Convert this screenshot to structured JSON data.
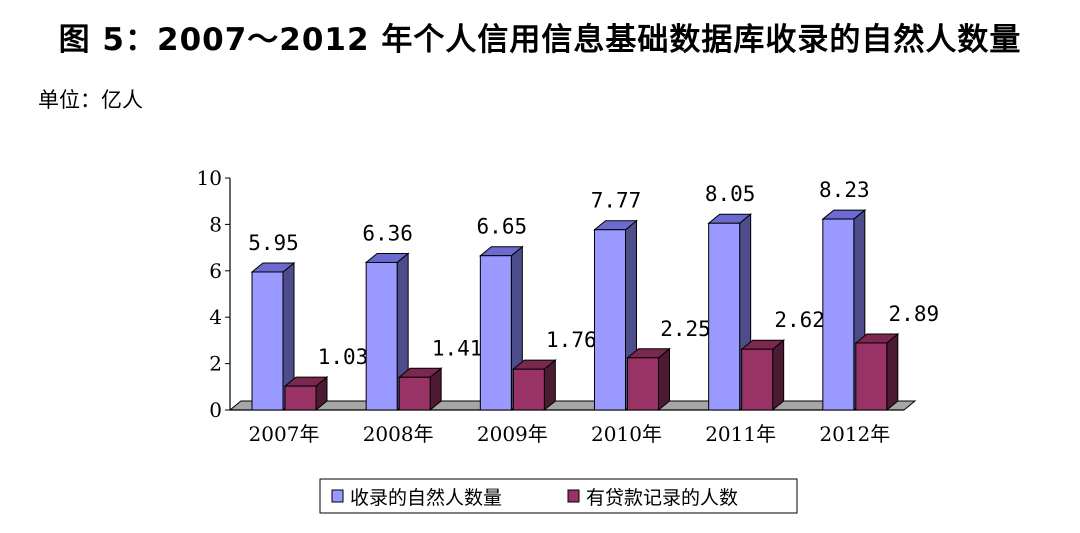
{
  "title": "图 5：2007～2012 年个人信用信息基础数据库收录的自然人数量",
  "unit": "单位：亿人",
  "colors": {
    "series1_front": "#9999ff",
    "series1_side": "#4d4d8c",
    "series1_top": "#6a6ad0",
    "series2_front": "#993366",
    "series2_side": "#4d1a33",
    "series2_top": "#7a2850",
    "floor": "#a6a6a6"
  },
  "chart_data": {
    "type": "bar",
    "categories": [
      "2007年",
      "2008年",
      "2009年",
      "2010年",
      "2011年",
      "2012年"
    ],
    "series": [
      {
        "name": "收录的自然人数量",
        "values": [
          5.95,
          6.36,
          6.65,
          7.77,
          8.05,
          8.23
        ],
        "labels": [
          "5.95",
          "6.36",
          "6.65",
          "7.77",
          "8.05",
          "8.23"
        ]
      },
      {
        "name": "有贷款记录的人数",
        "values": [
          1.03,
          1.41,
          1.76,
          2.25,
          2.62,
          2.89
        ],
        "labels": [
          "1.03",
          "1.41",
          "1.76",
          "2.25",
          "2.62",
          "2.89"
        ]
      }
    ],
    "ylim": [
      0,
      10
    ],
    "yticks": [
      "0",
      "2",
      "4",
      "6",
      "8",
      "10"
    ],
    "legend": "bottom",
    "grid": false
  }
}
